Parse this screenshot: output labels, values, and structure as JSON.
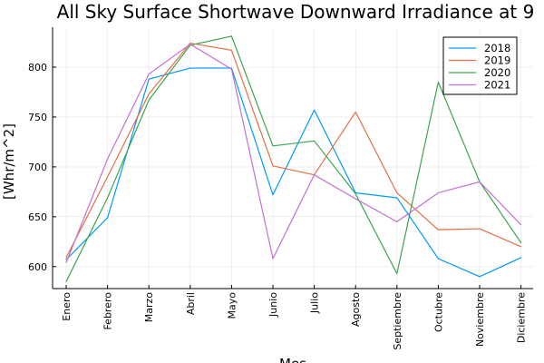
{
  "chart_data": {
    "type": "line",
    "title": "All Sky Surface Shortwave Downward Irradiance at 9",
    "xlabel": "Mes",
    "ylabel": "[Whr/m^2]",
    "categories": [
      "Enero",
      "Febrero",
      "Marzo",
      "Abril",
      "Mayo",
      "Junio",
      "Julio",
      "Agosto",
      "Septiembre",
      "Octubre",
      "Noviembre",
      "Diciembre"
    ],
    "ylim": [
      578,
      840
    ],
    "yticks": [
      600,
      650,
      700,
      750,
      800
    ],
    "grid": true,
    "legend_position": "top-right",
    "series": [
      {
        "name": "2018",
        "color": "#009AF9",
        "values": [
          607,
          649,
          788,
          799,
          799,
          672,
          757,
          674,
          669,
          608,
          590,
          609
        ]
      },
      {
        "name": "2019",
        "color": "#E26F46",
        "values": [
          609,
          690,
          773,
          824,
          817,
          701,
          692,
          755,
          674,
          637,
          638,
          620
        ]
      },
      {
        "name": "2020",
        "color": "#3EA44E",
        "values": [
          585,
          669,
          767,
          822,
          831,
          721,
          726,
          673,
          593,
          785,
          685,
          624
        ]
      },
      {
        "name": "2021",
        "color": "#C371D2",
        "values": [
          604,
          708,
          793,
          823,
          798,
          608,
          692,
          668,
          645,
          674,
          685,
          642
        ]
      }
    ]
  }
}
